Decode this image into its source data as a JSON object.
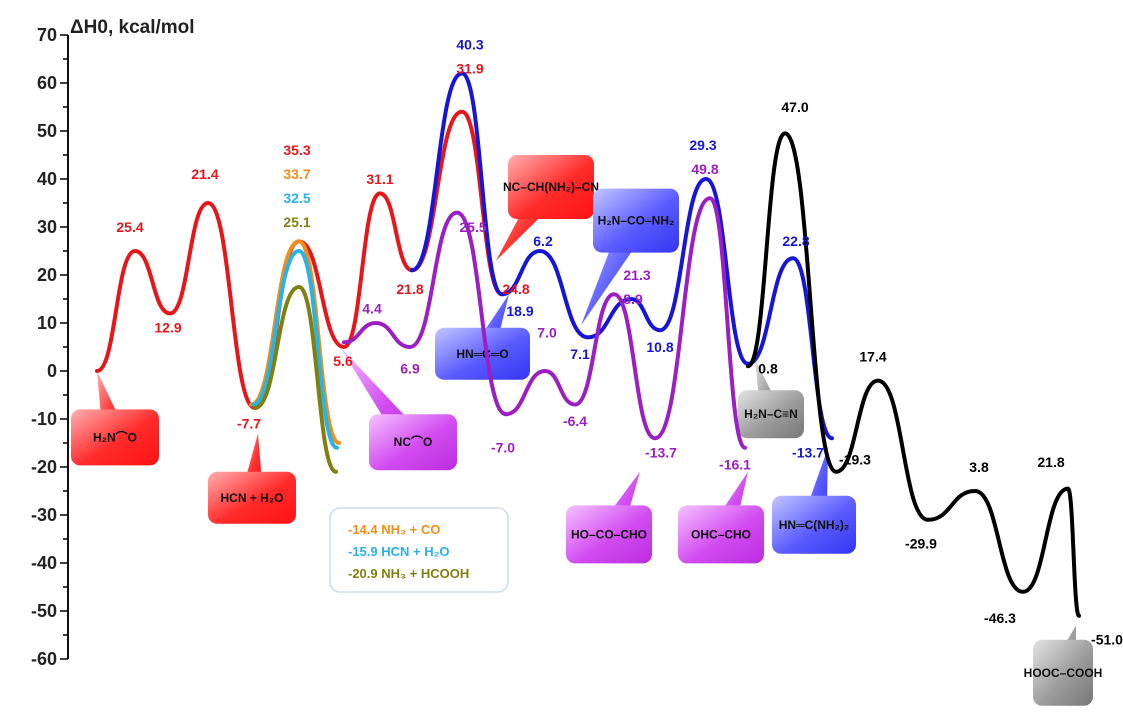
{
  "chart_data": {
    "type": "line",
    "title": "",
    "ylabel": "ΔH0, kcal/mol",
    "ylim": [
      -60,
      70
    ],
    "yticks": [
      70,
      60,
      50,
      40,
      30,
      20,
      10,
      0,
      -10,
      -20,
      -30,
      -40,
      -50,
      -60
    ],
    "grid": false,
    "colors": {
      "red": "#e8161b",
      "blue": "#1616d6",
      "purple": "#9b1fc2",
      "black": "#000000",
      "orange": "#f28c1a",
      "cyan": "#27b3e6",
      "olive": "#808010"
    },
    "series": [
      {
        "color": "red",
        "points": [
          [
            97,
            0
          ],
          [
            135,
            25
          ],
          [
            170,
            12
          ],
          [
            208,
            35
          ],
          [
            255,
            -7.7
          ],
          [
            299,
            27
          ],
          [
            344,
            5
          ],
          [
            380,
            37
          ],
          [
            412,
            21
          ],
          [
            462,
            54
          ],
          [
            502,
            16
          ]
        ]
      },
      {
        "color": "blue",
        "points": [
          [
            412,
            21
          ],
          [
            462,
            62
          ],
          [
            502,
            16
          ],
          [
            540,
            25
          ],
          [
            588,
            7
          ],
          [
            631,
            15
          ],
          [
            660,
            8.5
          ],
          [
            706,
            40
          ],
          [
            748,
            1.5
          ],
          [
            793,
            23.5
          ],
          [
            832,
            -14
          ]
        ]
      },
      {
        "color": "purple",
        "points": [
          [
            344,
            6
          ],
          [
            376,
            10
          ],
          [
            410,
            5
          ],
          [
            457,
            33
          ],
          [
            506,
            -9
          ],
          [
            545,
            0
          ],
          [
            575,
            -7
          ],
          [
            614,
            16
          ],
          [
            655,
            -14
          ],
          [
            710,
            36
          ],
          [
            745,
            -16
          ]
        ]
      },
      {
        "color": "black",
        "points": [
          [
            748,
            1
          ],
          [
            785,
            49.5
          ],
          [
            836,
            -21
          ],
          [
            878,
            -2
          ],
          [
            928,
            -31
          ],
          [
            975,
            -25
          ],
          [
            1023,
            -46
          ],
          [
            1068,
            -24.5
          ],
          [
            1079,
            -51
          ]
        ]
      },
      {
        "color": "orange",
        "points": [
          [
            251,
            -7
          ],
          [
            299,
            27
          ],
          [
            339,
            -15
          ]
        ]
      },
      {
        "color": "cyan",
        "points": [
          [
            253,
            -7
          ],
          [
            299,
            25
          ],
          [
            337,
            -16
          ]
        ]
      },
      {
        "color": "olive",
        "points": [
          [
            255,
            -7.7
          ],
          [
            299,
            17.5
          ],
          [
            336,
            -21
          ]
        ]
      }
    ],
    "value_labels": [
      {
        "text": "25.4",
        "color": "red",
        "at": [
          130,
          29
        ]
      },
      {
        "text": "12.9",
        "color": "red",
        "at": [
          168,
          8
        ]
      },
      {
        "text": "21.4",
        "color": "red",
        "at": [
          205,
          40
        ]
      },
      {
        "text": "-7.7",
        "color": "red",
        "at": [
          249,
          -12
        ]
      },
      {
        "text": "35.3",
        "color": "red",
        "at": [
          297,
          45
        ]
      },
      {
        "text": "33.7",
        "color": "orange",
        "at": [
          297,
          40
        ]
      },
      {
        "text": "32.5",
        "color": "cyan",
        "at": [
          297,
          35
        ]
      },
      {
        "text": "25.1",
        "color": "olive",
        "at": [
          297,
          30
        ]
      },
      {
        "text": "5.6",
        "color": "red",
        "at": [
          343,
          1
        ]
      },
      {
        "text": "31.1",
        "color": "red",
        "at": [
          380,
          39
        ]
      },
      {
        "text": "21.8",
        "color": "red",
        "at": [
          410,
          16
        ]
      },
      {
        "text": "40.3",
        "color": "blue",
        "at": [
          470,
          67
        ]
      },
      {
        "text": "31.9",
        "color": "red",
        "at": [
          470,
          62
        ]
      },
      {
        "text": "4.4",
        "color": "purple",
        "at": [
          372,
          12
        ]
      },
      {
        "text": "6.9",
        "color": "purple",
        "at": [
          410,
          -0.5
        ]
      },
      {
        "text": "25.5",
        "color": "purple",
        "at": [
          473,
          29
        ]
      },
      {
        "text": "24.8",
        "color": "red",
        "at": [
          516,
          16
        ]
      },
      {
        "text": "6.2",
        "color": "blue",
        "at": [
          543,
          26
        ]
      },
      {
        "text": "18.9",
        "color": "blue",
        "at": [
          520,
          11.5
        ]
      },
      {
        "text": "-7.0",
        "color": "purple",
        "at": [
          503,
          -17
        ]
      },
      {
        "text": "7.0",
        "color": "purple",
        "at": [
          547,
          7
        ]
      },
      {
        "text": "7.1",
        "color": "blue",
        "at": [
          580,
          2.5
        ]
      },
      {
        "text": "-6.4",
        "color": "purple",
        "at": [
          575,
          -11.5
        ]
      },
      {
        "text": "21.3",
        "color": "purple",
        "at": [
          637,
          19
        ]
      },
      {
        "text": "8.9",
        "color": "purple",
        "at": [
          633,
          14
        ]
      },
      {
        "text": "10.8",
        "color": "blue",
        "at": [
          660,
          4
        ]
      },
      {
        "text": "-13.7",
        "color": "purple",
        "at": [
          661,
          -18
        ]
      },
      {
        "text": "29.3",
        "color": "blue",
        "at": [
          703,
          46
        ]
      },
      {
        "text": "49.8",
        "color": "purple",
        "at": [
          705,
          41
        ]
      },
      {
        "text": "-16.1",
        "color": "purple",
        "at": [
          735,
          -20.5
        ]
      },
      {
        "text": "47.0",
        "color": "black",
        "at": [
          795,
          54
        ]
      },
      {
        "text": "22.8",
        "color": "blue",
        "at": [
          796,
          26
        ]
      },
      {
        "text": "0.8",
        "color": "black",
        "at": [
          768,
          -0.5
        ]
      },
      {
        "text": "-13.7",
        "color": "blue",
        "at": [
          808,
          -18
        ]
      },
      {
        "text": "-19.3",
        "color": "black",
        "at": [
          855,
          -19.5
        ]
      },
      {
        "text": "17.4",
        "color": "black",
        "at": [
          873,
          2
        ]
      },
      {
        "text": "-29.9",
        "color": "black",
        "at": [
          921,
          -37
        ]
      },
      {
        "text": "3.8",
        "color": "black",
        "at": [
          979,
          -21
        ]
      },
      {
        "text": "21.8",
        "color": "black",
        "at": [
          1051,
          -20
        ]
      },
      {
        "text": "-46.3",
        "color": "black",
        "at": [
          1000,
          -52.5
        ]
      },
      {
        "text": "-51.0",
        "color": "black",
        "at": [
          1107,
          -57
        ]
      }
    ],
    "bubbles": [
      {
        "id": "formamide",
        "fill": "red",
        "label": "H₂N⌒O",
        "at": [
          71,
          -8
        ],
        "size": [
          88,
          56
        ],
        "tail": [
          97,
          0
        ]
      },
      {
        "id": "hcn-h2o",
        "fill": "red",
        "label": "HCN + H₂O",
        "at": [
          208,
          -21
        ],
        "size": [
          88,
          52
        ],
        "tail": [
          258,
          -13
        ]
      },
      {
        "id": "nc-cho",
        "fill": "purple",
        "label": "NC⌒O",
        "at": [
          369,
          -9
        ],
        "size": [
          88,
          56
        ],
        "tail": [
          340,
          5
        ]
      },
      {
        "id": "hnco",
        "fill": "blue",
        "label": "HN═C═O",
        "at": [
          435,
          9
        ],
        "size": [
          95,
          52
        ],
        "tail": [
          509,
          16
        ]
      },
      {
        "id": "aminomalononitrile",
        "fill": "red",
        "label": "NC–CH(NH₂)–CN",
        "at": [
          508,
          45
        ],
        "size": [
          86,
          64
        ],
        "tail": [
          496,
          23
        ]
      },
      {
        "id": "urea",
        "fill": "blue",
        "label": "H₂N–CO–NH₂",
        "at": [
          593,
          38
        ],
        "size": [
          86,
          64
        ],
        "tail": [
          581,
          9.5
        ]
      },
      {
        "id": "glyoxylic",
        "fill": "purple",
        "label": "HO–CO–CHO",
        "at": [
          566,
          -28
        ],
        "size": [
          86,
          58
        ],
        "tail": [
          640,
          -21
        ]
      },
      {
        "id": "glyoxal",
        "fill": "purple",
        "label": "OHC–CHO",
        "at": [
          678,
          -28
        ],
        "size": [
          86,
          58
        ],
        "tail": [
          748,
          -21
        ]
      },
      {
        "id": "cyanamide",
        "fill": "black",
        "label": "H₂N–C≡N",
        "at": [
          738,
          -4
        ],
        "size": [
          66,
          48
        ],
        "tail": [
          755,
          2.5
        ]
      },
      {
        "id": "guanidine",
        "fill": "blue",
        "label": "HN═C(NH₂)₂",
        "at": [
          772,
          -26
        ],
        "size": [
          84,
          58
        ],
        "tail": [
          828,
          -16
        ]
      },
      {
        "id": "oxalic",
        "fill": "black",
        "label": "HOOC–COOH",
        "at": [
          1033,
          -56
        ],
        "size": [
          60,
          66
        ],
        "tail": [
          1076,
          -53
        ]
      }
    ],
    "legend": {
      "placement": "center-bottom",
      "entries": [
        {
          "color": "orange",
          "text": "-14.4 NH₃ + CO"
        },
        {
          "color": "cyan",
          "text": "-15.9 HCN + H₂O"
        },
        {
          "color": "olive",
          "text": "-20.9 NH₃ + HCOOH"
        }
      ]
    }
  }
}
